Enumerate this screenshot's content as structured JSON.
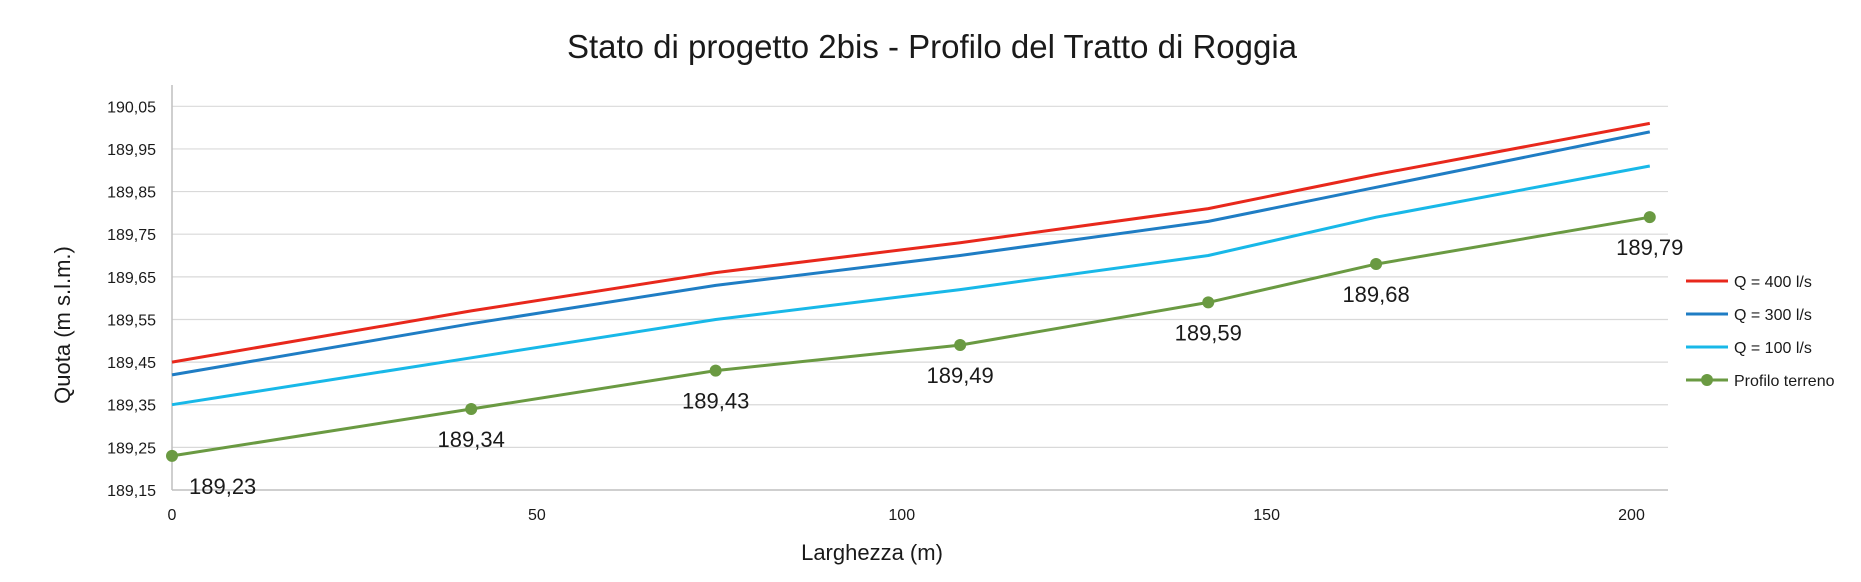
{
  "chart_data": {
    "type": "line",
    "title": "Stato di progetto 2bis - Profilo del Tratto di Roggia",
    "xlabel": "Larghezza (m)",
    "ylabel": "Quota (m s.l.m.)",
    "xlim": [
      0,
      205
    ],
    "ylim": [
      189.15,
      190.1
    ],
    "xticks": [
      0,
      50,
      100,
      150,
      200
    ],
    "xtick_labels": [
      "0",
      "50",
      "100",
      "150",
      "200"
    ],
    "yticks": [
      189.15,
      189.25,
      189.35,
      189.45,
      189.55,
      189.65,
      189.75,
      189.85,
      189.95,
      190.05
    ],
    "ytick_labels": [
      "189,15",
      "189,25",
      "189,35",
      "189,45",
      "189,55",
      "189,65",
      "189,75",
      "189,85",
      "189,95",
      "190,05"
    ],
    "grid": true,
    "legend_position": "right",
    "series": [
      {
        "name": "Q = 400 l/s",
        "color": "#e8281c",
        "markers": false,
        "x": [
          0,
          41,
          74.5,
          108,
          142,
          165,
          202.5
        ],
        "y": [
          189.45,
          189.57,
          189.66,
          189.73,
          189.81,
          189.89,
          190.01
        ]
      },
      {
        "name": "Q = 300 l/s",
        "color": "#1f7dc4",
        "markers": false,
        "x": [
          0,
          41,
          74.5,
          108,
          142,
          165,
          202.5
        ],
        "y": [
          189.42,
          189.54,
          189.63,
          189.7,
          189.78,
          189.86,
          189.99
        ]
      },
      {
        "name": "Q = 100 l/s",
        "color": "#18b8e8",
        "markers": false,
        "x": [
          0,
          41,
          74.5,
          108,
          142,
          165,
          202.5
        ],
        "y": [
          189.35,
          189.46,
          189.55,
          189.62,
          189.7,
          189.79,
          189.91
        ]
      },
      {
        "name": "Profilo terreno",
        "color": "#6a9a42",
        "markers": true,
        "x": [
          0,
          41,
          74.5,
          108,
          142,
          165,
          202.5
        ],
        "y": [
          189.23,
          189.34,
          189.43,
          189.49,
          189.59,
          189.68,
          189.79
        ],
        "labels": [
          "189,23",
          "189,34",
          "189,43",
          "189,49",
          "189,59",
          "189,68",
          "189,79"
        ]
      }
    ]
  }
}
